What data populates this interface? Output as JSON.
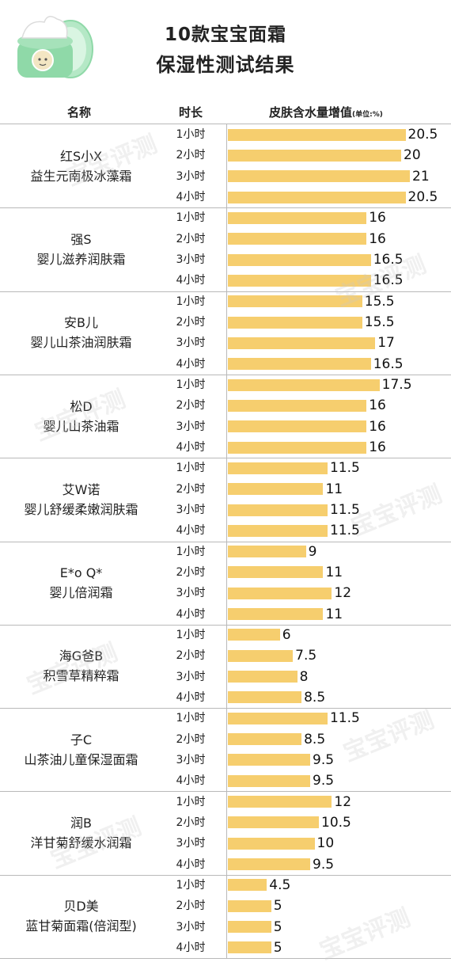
{
  "title_line1": "10款宝宝面霜",
  "title_line2": "保湿性测试结果",
  "columns": {
    "name": "名称",
    "duration": "时长",
    "value": "皮肤含水量增值",
    "unit": "(单位:%)"
  },
  "watermark": "宝宝评测",
  "colors": {
    "bar": "#f6ce6e",
    "jar": "#8fd9a8",
    "divider": "#b9b9b9"
  },
  "chart_data": {
    "type": "bar",
    "orientation": "horizontal",
    "title": "10款宝宝面霜 保湿性测试结果",
    "xlabel": "皮肤含水量增值(单位:%)",
    "categories": [
      "1小时",
      "2小时",
      "3小时",
      "4小时"
    ],
    "xlim": [
      0,
      21
    ],
    "groups": [
      {
        "name_line1": "红S小X",
        "name_line2": "益生元南极冰藻霜",
        "values": [
          20.5,
          20,
          21,
          20.5
        ],
        "labels": [
          "20.5",
          "20",
          "21",
          "20.5"
        ]
      },
      {
        "name_line1": "强S",
        "name_line2": "婴儿滋养润肤霜",
        "values": [
          16,
          16,
          16.5,
          16.5
        ],
        "labels": [
          "16",
          "16",
          "16.5",
          "16.5"
        ]
      },
      {
        "name_line1": "安B儿",
        "name_line2": "婴儿山茶油润肤霜",
        "values": [
          15.5,
          15.5,
          17,
          16.5
        ],
        "labels": [
          "15.5",
          "15.5",
          "17",
          "16.5"
        ]
      },
      {
        "name_line1": "松D",
        "name_line2": "婴儿山茶油霜",
        "values": [
          17.5,
          16,
          16,
          16
        ],
        "labels": [
          "17.5",
          "16",
          "16",
          "16"
        ]
      },
      {
        "name_line1": "艾W诺",
        "name_line2": "婴儿舒缓柔嫩润肤霜",
        "values": [
          11.5,
          11,
          11.5,
          11.5
        ],
        "labels": [
          "11.5",
          "11",
          "11.5",
          "11.5"
        ]
      },
      {
        "name_line1": "E*o Q*",
        "name_line2": "婴儿倍润霜",
        "values": [
          9,
          11,
          12,
          11
        ],
        "labels": [
          "9",
          "11",
          "12",
          "11"
        ]
      },
      {
        "name_line1": "海G爸B",
        "name_line2": "积雪草精粹霜",
        "values": [
          6,
          7.5,
          8,
          8.5
        ],
        "labels": [
          "6",
          "7.5",
          "8",
          "8.5"
        ]
      },
      {
        "name_line1": "子C",
        "name_line2": "山茶油儿童保湿面霜",
        "values": [
          11.5,
          8.5,
          9.5,
          9.5
        ],
        "labels": [
          "11.5",
          "8.5",
          "9.5",
          "9.5"
        ]
      },
      {
        "name_line1": "润B",
        "name_line2": "洋甘菊舒缓水润霜",
        "values": [
          12,
          10.5,
          10,
          9.5
        ],
        "labels": [
          "12",
          "10.5",
          "10",
          "9.5"
        ]
      },
      {
        "name_line1": "贝D美",
        "name_line2": "蓝甘菊面霜(倍润型)",
        "values": [
          4.5,
          5,
          5,
          5
        ],
        "labels": [
          "4.5",
          "5",
          "5",
          "5"
        ]
      }
    ]
  }
}
